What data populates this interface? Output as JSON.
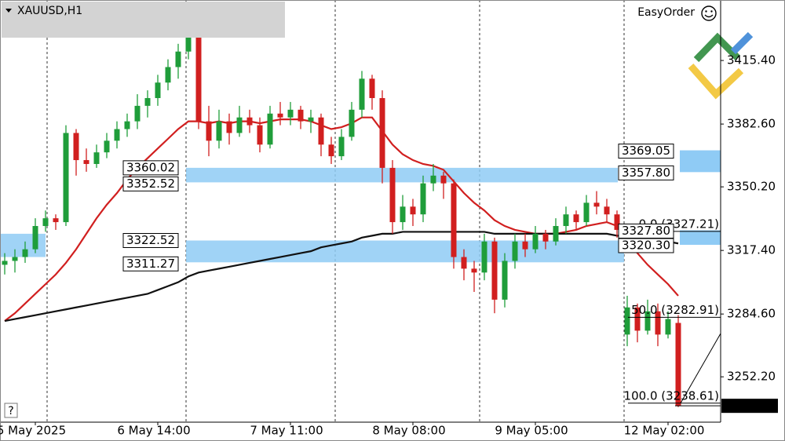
{
  "chart_data": {
    "type": "candlestick",
    "symbol": "XAUUSD,H1",
    "panel": "EasyOrder",
    "help": "?",
    "up_color": "#1f9d3a",
    "down_color": "#d11f1f",
    "ylim": [
      3228.8,
      3446.6
    ],
    "yticks": [
      {
        "value": 3415.4,
        "label": "3415.40"
      },
      {
        "value": 3382.6,
        "label": "3382.60"
      },
      {
        "value": 3350.2,
        "label": "3350.20"
      },
      {
        "value": 3317.4,
        "label": "3317.40"
      },
      {
        "value": 3284.6,
        "label": "3284.60"
      },
      {
        "value": 3252.2,
        "label": "3252.20"
      }
    ],
    "categories": [
      null,
      null,
      null,
      "5 May 2025",
      null,
      null,
      null,
      null,
      null,
      null,
      null,
      null,
      null,
      null,
      null,
      "6 May 14:00",
      null,
      null,
      null,
      null,
      null,
      null,
      null,
      null,
      null,
      null,
      null,
      null,
      "7 May 11:00",
      null,
      null,
      null,
      null,
      null,
      null,
      null,
      null,
      null,
      null,
      null,
      "8 May 08:00",
      null,
      null,
      null,
      null,
      null,
      null,
      null,
      null,
      null,
      null,
      null,
      "9 May 05:00",
      null,
      null,
      null,
      null,
      null,
      null,
      null,
      null,
      null,
      null,
      null,
      null,
      "12 May 02:00",
      null
    ],
    "ohlc": [
      [
        3310,
        3316,
        3305,
        3312
      ],
      [
        3312,
        3318,
        3306,
        3314
      ],
      [
        3314,
        3322,
        3311,
        3318
      ],
      [
        3318,
        3334,
        3316,
        3330
      ],
      [
        3330,
        3338,
        3327,
        3334
      ],
      [
        3334,
        3336,
        3328,
        3332
      ],
      [
        3332,
        3382,
        3330,
        3378
      ],
      [
        3378,
        3380,
        3356,
        3364
      ],
      [
        3364,
        3370,
        3358,
        3362
      ],
      [
        3362,
        3372,
        3360,
        3368
      ],
      [
        3368,
        3378,
        3365,
        3374
      ],
      [
        3374,
        3384,
        3370,
        3380
      ],
      [
        3380,
        3388,
        3376,
        3384
      ],
      [
        3384,
        3398,
        3380,
        3392
      ],
      [
        3392,
        3400,
        3386,
        3396
      ],
      [
        3396,
        3408,
        3392,
        3404
      ],
      [
        3404,
        3416,
        3400,
        3412
      ],
      [
        3412,
        3424,
        3406,
        3420
      ],
      [
        3420,
        3440,
        3416,
        3428
      ],
      [
        3428,
        3432,
        3380,
        3384
      ],
      [
        3384,
        3392,
        3366,
        3374
      ],
      [
        3374,
        3390,
        3370,
        3384
      ],
      [
        3384,
        3388,
        3372,
        3378
      ],
      [
        3378,
        3392,
        3376,
        3386
      ],
      [
        3386,
        3390,
        3378,
        3382
      ],
      [
        3382,
        3386,
        3368,
        3372
      ],
      [
        3372,
        3392,
        3370,
        3388
      ],
      [
        3388,
        3394,
        3382,
        3386
      ],
      [
        3386,
        3394,
        3382,
        3390
      ],
      [
        3390,
        3392,
        3380,
        3384
      ],
      [
        3384,
        3390,
        3378,
        3386
      ],
      [
        3386,
        3388,
        3366,
        3372
      ],
      [
        3372,
        3376,
        3362,
        3366
      ],
      [
        3366,
        3380,
        3364,
        3376
      ],
      [
        3376,
        3394,
        3374,
        3390
      ],
      [
        3390,
        3410,
        3386,
        3406
      ],
      [
        3406,
        3408,
        3390,
        3396
      ],
      [
        3396,
        3400,
        3352,
        3360
      ],
      [
        3360,
        3364,
        3326,
        3332
      ],
      [
        3332,
        3346,
        3328,
        3340
      ],
      [
        3340,
        3344,
        3330,
        3336
      ],
      [
        3336,
        3356,
        3332,
        3352
      ],
      [
        3352,
        3362,
        3348,
        3356
      ],
      [
        3356,
        3358,
        3344,
        3352
      ],
      [
        3352,
        3354,
        3308,
        3314
      ],
      [
        3314,
        3318,
        3302,
        3308
      ],
      [
        3308,
        3312,
        3296,
        3306
      ],
      [
        3306,
        3326,
        3302,
        3322
      ],
      [
        3322,
        3324,
        3285,
        3292
      ],
      [
        3292,
        3316,
        3288,
        3312
      ],
      [
        3312,
        3326,
        3308,
        3322
      ],
      [
        3322,
        3326,
        3314,
        3318
      ],
      [
        3318,
        3330,
        3316,
        3326
      ],
      [
        3326,
        3328,
        3318,
        3322
      ],
      [
        3322,
        3334,
        3320,
        3330
      ],
      [
        3330,
        3340,
        3326,
        3336
      ],
      [
        3336,
        3338,
        3328,
        3332
      ],
      [
        3332,
        3346,
        3330,
        3342
      ],
      [
        3342,
        3348,
        3336,
        3340
      ],
      [
        3340,
        3344,
        3332,
        3336
      ],
      [
        3336,
        3338,
        3324,
        3328
      ],
      [
        3274,
        3294,
        3268,
        3288
      ],
      [
        3288,
        3290,
        3270,
        3276
      ],
      [
        3276,
        3292,
        3274,
        3286
      ],
      [
        3286,
        3290,
        3268,
        3274
      ],
      [
        3274,
        3286,
        3272,
        3282
      ],
      [
        3280,
        3284,
        3236.6,
        3237.23
      ]
    ],
    "series": [
      {
        "color": "#d11f1f",
        "values": [
          3281,
          3285,
          3290,
          3295,
          3300,
          3305,
          3311,
          3318,
          3326,
          3334,
          3341,
          3347,
          3354,
          3360,
          3365,
          3370,
          3375,
          3380,
          3384,
          3384,
          3383,
          3384,
          3383,
          3384,
          3384,
          3383,
          3384,
          3385,
          3385,
          3385,
          3384,
          3382,
          3380,
          3381,
          3383,
          3386,
          3386,
          3379,
          3372,
          3367,
          3364,
          3362,
          3361,
          3359,
          3353,
          3347,
          3342,
          3338,
          3333,
          3330,
          3328,
          3327,
          3326,
          3326,
          3326,
          3327,
          3328,
          3330,
          3331,
          3332,
          3330,
          3323,
          3316,
          3310,
          3305,
          3300,
          3294
        ]
      },
      {
        "color": "#111111",
        "values": [
          3281,
          3282,
          3283,
          3284,
          3285,
          3286,
          3287,
          3288,
          3289,
          3290,
          3291,
          3292,
          3293,
          3294,
          3295,
          3297,
          3299,
          3301,
          3304,
          3306,
          3307,
          3308,
          3309,
          3310,
          3311,
          3312,
          3313,
          3314,
          3315,
          3316,
          3317,
          3319,
          3320,
          3321,
          3322,
          3324,
          3325,
          3326,
          3326,
          3327,
          3327,
          3327,
          3327,
          3327,
          3327,
          3327,
          3327,
          3327,
          3326,
          3326,
          3326,
          3326,
          3326,
          3326,
          3326,
          3326,
          3326,
          3326,
          3326,
          3326,
          3325,
          3325,
          3324,
          3323,
          3323,
          3322,
          3321
        ]
      }
    ],
    "left_zone": {
      "top": 3326,
      "bottom": 3314
    },
    "zones": [
      {
        "top": 3360.02,
        "bottom": 3352.52
      },
      {
        "top": 3322.52,
        "bottom": 3311.27
      }
    ],
    "right_zones": [
      {
        "top": 3369.05,
        "bottom": {
          "value": 3357.8,
          "label": "3357.80"
        }
      },
      {
        "top": {
          "value": 3327.8,
          "label": "3327.80"
        },
        "bottom": {
          "value": 3320.3,
          "label": "3320.30"
        }
      }
    ],
    "fibonacci": [
      {
        "value": 3327.21,
        "label": "0.0 (3327.21)"
      },
      {
        "value": 3282.91,
        "label": "50.0 (3282.91)"
      },
      {
        "value": 3238.61,
        "label": "100.0 (3238.61)"
      }
    ],
    "last_price": 3237.23
  }
}
